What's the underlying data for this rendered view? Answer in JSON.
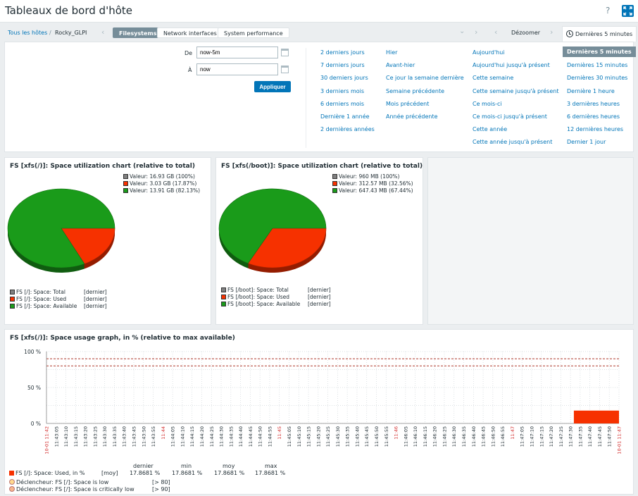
{
  "header": {
    "title": "Tableaux de bord d'hôte",
    "help": "?"
  },
  "breadcrumb": {
    "all_hosts": "Tous les hôtes",
    "separator": "/",
    "host": "Rocky_GLPI"
  },
  "tabs": [
    "Filesystems",
    "Network interfaces",
    "System performance"
  ],
  "time_controls": {
    "zoom_out": "Dézoomer",
    "current_range": "Dernières 5 minutes"
  },
  "time_form": {
    "from_label": "De",
    "from_value": "now-5m",
    "to_label": "À",
    "to_value": "now",
    "apply": "Appliquer"
  },
  "quick_ranges": [
    [
      "2 derniers jours",
      "7 derniers jours",
      "30 derniers jours",
      "3 derniers mois",
      "6 derniers mois",
      "Dernière 1 année",
      "2 dernières années"
    ],
    [
      "Hier",
      "Avant-hier",
      "Ce jour la semaine dernière",
      "Semaine précédente",
      "Mois précédent",
      "Année précédente"
    ],
    [
      "Aujourd'hui",
      "Aujourd'hui jusqu'à présent",
      "Cette semaine",
      "Cette semaine jusqu'à présent",
      "Ce mois-ci",
      "Ce mois-ci jusqu'à présent",
      "Cette année",
      "Cette année jusqu'à présent"
    ],
    [
      "Dernières 5 minutes",
      "Dernières 15 minutes",
      "Dernières 30 minutes",
      "Dernière 1 heure",
      "3 dernières heures",
      "6 dernières heures",
      "12 dernières heures",
      "Dernier 1 jour"
    ]
  ],
  "colors": {
    "total": "#808080",
    "used": "#f63100",
    "available": "#1a9b1a",
    "accent": "#0275b8",
    "trigger_line": "#b03a2e"
  },
  "pie1": {
    "title": "FS [xfs(/)]: Space utilization chart (relative to total)",
    "legend_top": [
      "Valeur: 16.93 GB (100%)",
      "Valeur: 3.03 GB (17.87%)",
      "Valeur: 13.91 GB (82.13%)"
    ],
    "legend_bottom": [
      {
        "name": "FS [/]: Space: Total",
        "tag": "[dernier]"
      },
      {
        "name": "FS [/]: Space: Used",
        "tag": "[dernier]"
      },
      {
        "name": "FS [/]: Space: Available",
        "tag": "[dernier]"
      }
    ]
  },
  "pie2": {
    "title": "FS [xfs(/boot)]: Space utilization chart (relative to total)",
    "legend_top": [
      "Valeur: 960 MB (100%)",
      "Valeur: 312.57 MB (32.56%)",
      "Valeur: 647.43 MB (67.44%)"
    ],
    "legend_bottom": [
      {
        "name": "FS [/boot]: Space: Total",
        "tag": "[dernier]"
      },
      {
        "name": "FS [/boot]: Space: Used",
        "tag": "[dernier]"
      },
      {
        "name": "FS [/boot]: Space: Available",
        "tag": "[dernier]"
      }
    ]
  },
  "chart_data": [
    {
      "type": "pie",
      "title": "FS [xfs(/)]: Space utilization chart (relative to total)",
      "slices": [
        {
          "name": "FS [/]: Space: Used",
          "value": 17.87
        },
        {
          "name": "FS [/]: Space: Available",
          "value": 82.13
        }
      ]
    },
    {
      "type": "pie",
      "title": "FS [xfs(/boot)]: Space utilization chart (relative to total)",
      "slices": [
        {
          "name": "FS [/boot]: Space: Used",
          "value": 32.56
        },
        {
          "name": "FS [/boot]: Space: Available",
          "value": 67.44
        }
      ]
    },
    {
      "type": "area",
      "title": "FS [xfs(/)]: Space usage graph, in % (relative to max available)",
      "y_ticks": [
        "100 %",
        "50 %",
        "0 %"
      ],
      "ylim": [
        0,
        100
      ],
      "x_ticks": [
        "10-01 11:42",
        "11:43:05",
        "11:43:10",
        "11:43:15",
        "11:43:20",
        "11:43:25",
        "11:43:30",
        "11:43:35",
        "11:43:40",
        "11:43:45",
        "11:43:50",
        "11:43:55",
        "11:44",
        "11:44:05",
        "11:44:10",
        "11:44:15",
        "11:44:20",
        "11:44:25",
        "11:44:30",
        "11:44:35",
        "11:44:40",
        "11:44:45",
        "11:44:50",
        "11:44:55",
        "11:45",
        "11:45:05",
        "11:45:10",
        "11:45:15",
        "11:45:20",
        "11:45:25",
        "11:45:30",
        "11:45:35",
        "11:45:40",
        "11:45:45",
        "11:45:50",
        "11:45:55",
        "11:46",
        "11:46:05",
        "11:46:10",
        "11:46:15",
        "11:46:20",
        "11:46:25",
        "11:46:30",
        "11:46:35",
        "11:46:40",
        "11:46:45",
        "11:46:50",
        "11:46:55",
        "11:47",
        "11:47:05",
        "11:47:10",
        "11:47:15",
        "11:47:20",
        "11:47:25",
        "11:47:30",
        "11:47:35",
        "11:47:40",
        "11:47:45",
        "11:47:50",
        "10-01 11:47"
      ],
      "red_ticks": [
        "10-01 11:42",
        "11:44",
        "11:45",
        "11:46",
        "11:47",
        "10-01 11:47"
      ],
      "series": [
        {
          "name": "FS [/]: Space: Used, in %",
          "start": "11:47:30",
          "end": "10-01 11:47",
          "value": 17.8681
        }
      ],
      "thresholds": [
        80,
        90
      ],
      "legend": {
        "headers": [
          "dernier",
          "min",
          "moy",
          "max"
        ],
        "row": {
          "name": "FS [/]: Space: Used, in %",
          "func": "[moy]",
          "values": [
            "17.8681 %",
            "17.8681 %",
            "17.8681 %",
            "17.8681 %"
          ]
        },
        "triggers": [
          {
            "name": "Déclencheur: FS [/]: Space is low",
            "cond": "[> 80]"
          },
          {
            "name": "Déclencheur: FS [/]: Space is critically low",
            "cond": "[> 90]"
          }
        ]
      }
    }
  ]
}
